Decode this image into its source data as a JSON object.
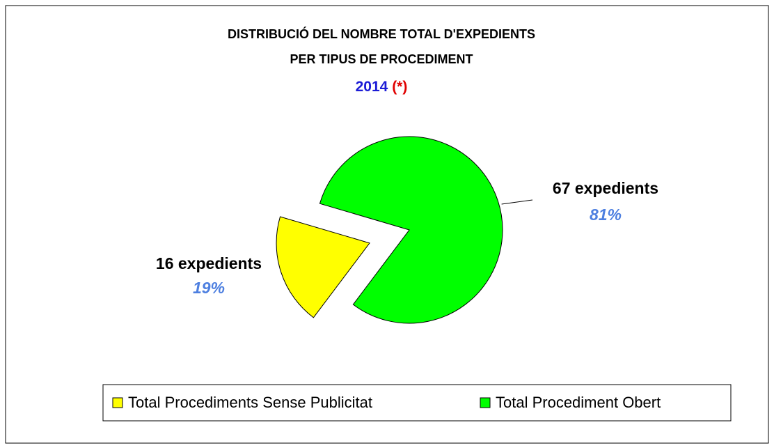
{
  "chart_data": {
    "type": "pie",
    "title": [
      "DISTRIBUCIÓ DEL NOMBRE TOTAL D'EXPEDIENTS",
      "PER TIPUS DE PROCEDIMENT"
    ],
    "subtitle": "2014",
    "note": "(*)",
    "categories": [
      "Total Procediments Sense Publicitat",
      "Total Procediment Obert"
    ],
    "values": [
      16,
      67
    ],
    "value_labels": [
      "16 expedients",
      "67 expedients"
    ],
    "percents": [
      19,
      81
    ],
    "percent_labels": [
      "19%",
      "81%"
    ],
    "colors": [
      "#ffff00",
      "#00ff00"
    ],
    "legend": "bottom"
  }
}
